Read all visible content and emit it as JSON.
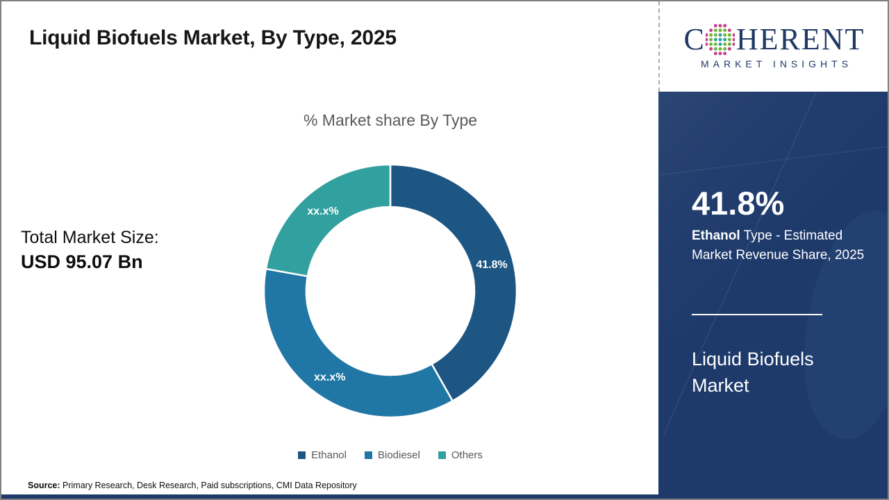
{
  "page": {
    "title": "Liquid Biofuels Market, By Type, 2025"
  },
  "logo": {
    "part1": "C",
    "part2": "HERENT",
    "subtitle": "MARKET INSIGHTS",
    "brand_color": "#1f3864",
    "globe_icon": "dotted-globe",
    "globe_dot_colors": [
      "#2fa0a0",
      "#6fb43c",
      "#c8418f"
    ]
  },
  "total_market": {
    "label": "Total Market Size:",
    "value": "USD 95.07 Bn"
  },
  "chart_data": {
    "type": "pie",
    "donut": true,
    "title": "% Market share By Type",
    "categories": [
      "Ethanol",
      "Biodiesel",
      "Others"
    ],
    "values": [
      41.8,
      36.0,
      22.2
    ],
    "values_note": "Ethanol labeled 41.8%; Biodiesel and Others masked as xx.x% in image, shares estimated from arc angles",
    "slice_labels": [
      "41.8%",
      "xx.x%",
      "xx.x%"
    ],
    "colors": [
      "#1d5583",
      "#2076a5",
      "#32a09e"
    ],
    "start_angle_deg": 0,
    "direction": "clockwise",
    "legend_position": "bottom"
  },
  "sidebar": {
    "bg_color": "#1e3a6b",
    "stat_value": "41.8%",
    "desc_bold": "Ethanol",
    "desc_rest": " Type - Estimated Market Revenue Share, 2025",
    "market_name": "Liquid Biofuels Market"
  },
  "footer": {
    "source_label": "Source:",
    "source_text": " Primary Research, Desk Research, Paid subscriptions, CMI Data Repository"
  }
}
